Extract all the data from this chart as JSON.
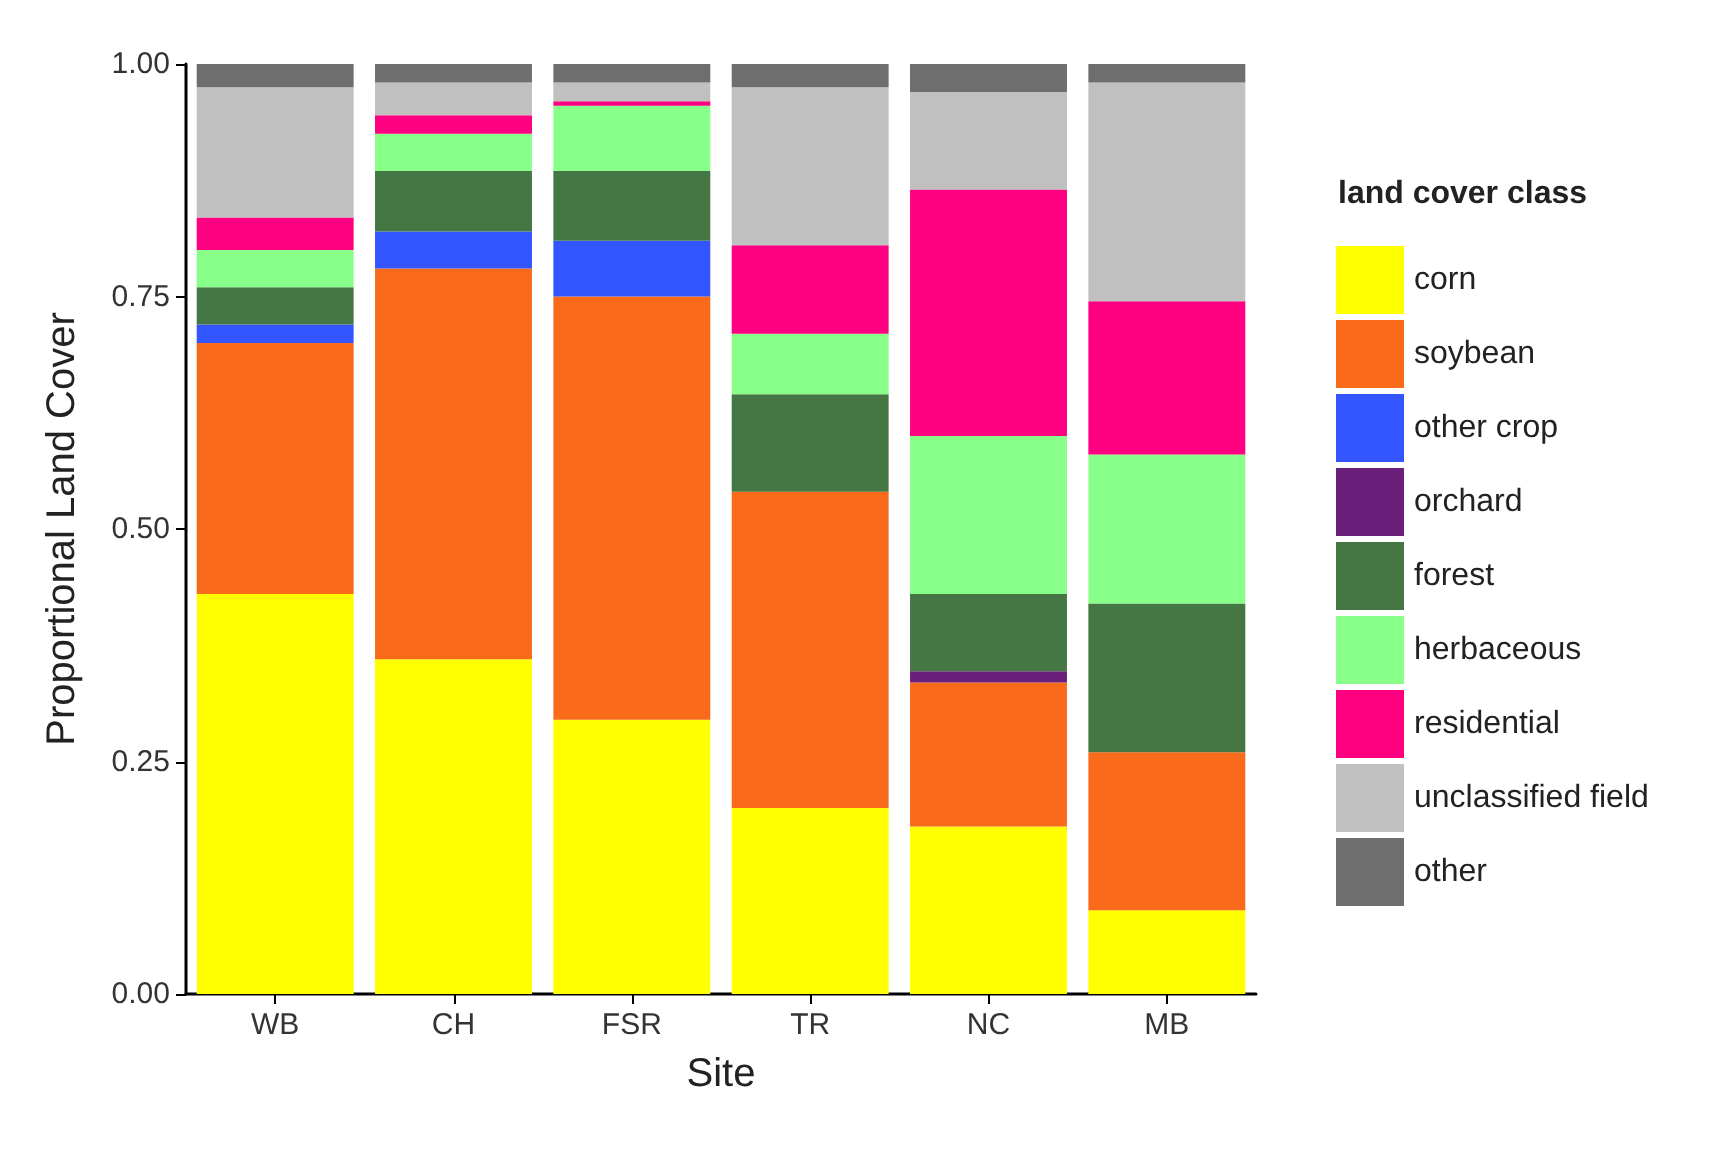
{
  "chart_data": {
    "type": "bar",
    "stacked": true,
    "xlabel": "Site",
    "ylabel": "Proportional Land Cover",
    "legend_title": "land cover class",
    "legend": "right",
    "grid": false,
    "categories": [
      "WB",
      "CH",
      "FSR",
      "TR",
      "NC",
      "MB"
    ],
    "ylim": [
      0,
      1.0
    ],
    "yticks": [
      {
        "value": 0,
        "label": "0.00"
      },
      {
        "value": 0.25,
        "label": "0.25"
      },
      {
        "value": 0.5,
        "label": "0.50"
      },
      {
        "value": 0.75,
        "label": "0.75"
      },
      {
        "value": 1.0,
        "label": "1.00"
      }
    ],
    "series": [
      {
        "name": "corn",
        "color": "#ffff00",
        "values": [
          0.43,
          0.36,
          0.295,
          0.2,
          0.18,
          0.09
        ]
      },
      {
        "name": "soybean",
        "color": "#f96a1b",
        "values": [
          0.27,
          0.42,
          0.455,
          0.34,
          0.155,
          0.17
        ]
      },
      {
        "name": "other crop",
        "color": "#3355ff",
        "values": [
          0.02,
          0.04,
          0.06,
          0,
          0,
          0
        ]
      },
      {
        "name": "orchard",
        "color": "#6a1f7a",
        "values": [
          0,
          0,
          0,
          0,
          0.012,
          0
        ]
      },
      {
        "name": "forest",
        "color": "#447744",
        "values": [
          0.04,
          0.065,
          0.075,
          0.105,
          0.083,
          0.16
        ]
      },
      {
        "name": "herbaceous",
        "color": "#88ff88",
        "values": [
          0.04,
          0.04,
          0.07,
          0.065,
          0.17,
          0.16
        ]
      },
      {
        "name": "residential",
        "color": "#ff0080",
        "values": [
          0.035,
          0.02,
          0.005,
          0.095,
          0.265,
          0.165
        ]
      },
      {
        "name": "unclassified field",
        "color": "#c0c0c0",
        "values": [
          0.14,
          0.035,
          0.02,
          0.17,
          0.105,
          0.235
        ]
      },
      {
        "name": "other",
        "color": "#6e6e6e",
        "values": [
          0.025,
          0.02,
          0.02,
          0.025,
          0.03,
          0.02
        ]
      }
    ]
  }
}
